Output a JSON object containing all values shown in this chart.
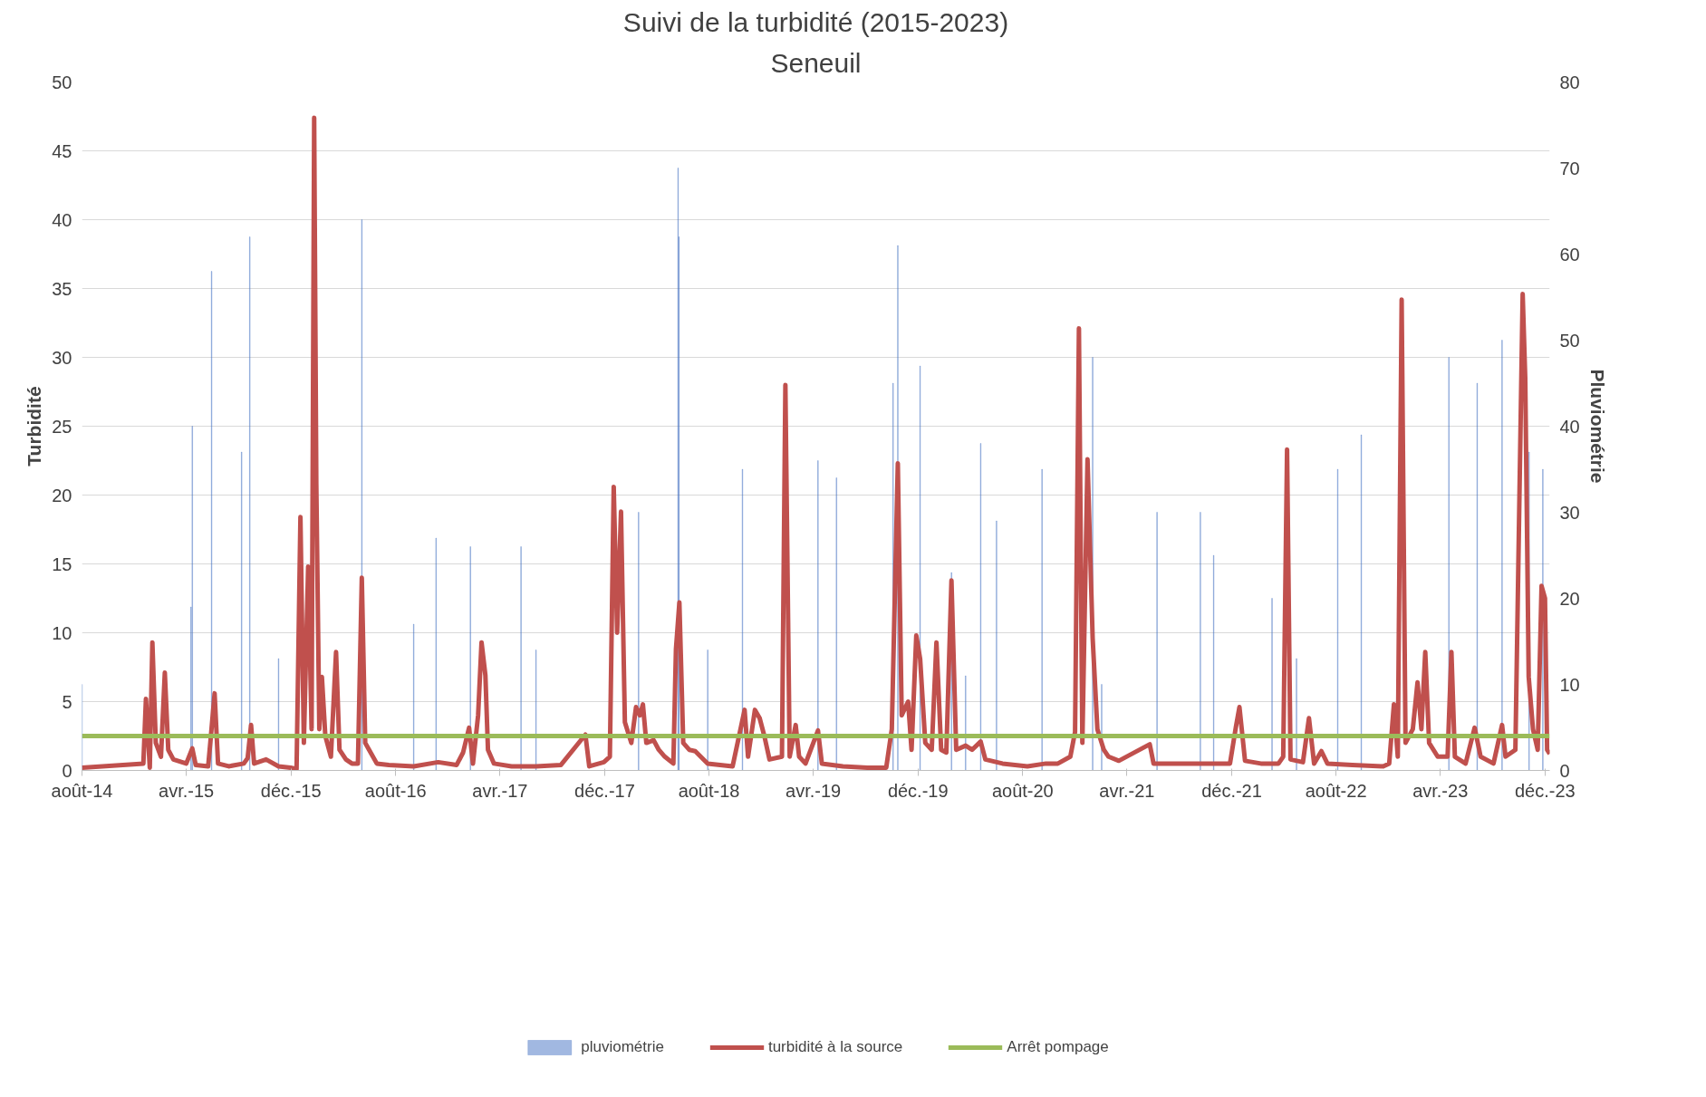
{
  "chart_data": {
    "type": "line",
    "title": "Suivi de la turbidité (2015-2023)",
    "subtitle": "Seneuil",
    "ylabel": "Turbidité",
    "y2label": "Pluviométrie",
    "xlim": [
      "2014-08-01",
      "2023-12-12"
    ],
    "xticks": [
      {
        "value": "2014-08",
        "label": "août-14"
      },
      {
        "value": "2015-04",
        "label": "avr.-15"
      },
      {
        "value": "2015-12",
        "label": "déc.-15"
      },
      {
        "value": "2016-08",
        "label": "août-16"
      },
      {
        "value": "2017-04",
        "label": "avr.-17"
      },
      {
        "value": "2017-12",
        "label": "déc.-17"
      },
      {
        "value": "2018-08",
        "label": "août-18"
      },
      {
        "value": "2019-04",
        "label": "avr.-19"
      },
      {
        "value": "2019-12",
        "label": "déc.-19"
      },
      {
        "value": "2020-08",
        "label": "août-20"
      },
      {
        "value": "2021-04",
        "label": "avr.-21"
      },
      {
        "value": "2021-12",
        "label": "déc.-21"
      },
      {
        "value": "2022-08",
        "label": "août-22"
      },
      {
        "value": "2023-04",
        "label": "avr.-23"
      },
      {
        "value": "2023-12",
        "label": "déc.-23"
      }
    ],
    "ylim": [
      0,
      50
    ],
    "yticks": [
      0,
      5,
      10,
      15,
      20,
      25,
      30,
      35,
      40,
      45,
      50
    ],
    "y2lim": [
      0,
      80
    ],
    "y2ticks": [
      0,
      10,
      20,
      30,
      40,
      50,
      60,
      70,
      80
    ],
    "grid": "y",
    "legend": "bottom",
    "series": [
      {
        "name": "pluviométrie",
        "type": "bar",
        "axis": "y2",
        "color": "#4472c4",
        "x": [
          "2014-08-01",
          "2015-04-12",
          "2015-04-15",
          "2015-05-30",
          "2015-08-08",
          "2015-08-27",
          "2015-11-02",
          "2016-05-14",
          "2016-09-12",
          "2016-11-03",
          "2017-01-22",
          "2017-05-20",
          "2017-06-24",
          "2017-12-13",
          "2018-02-18",
          "2018-05-21",
          "2018-05-23",
          "2018-07-29",
          "2018-10-18",
          "2019-01-18",
          "2019-04-12",
          "2019-05-25",
          "2019-10-04",
          "2019-10-15",
          "2019-12-06",
          "2020-02-17",
          "2020-03-21",
          "2020-04-25",
          "2020-06-01",
          "2020-09-15",
          "2021-01-11",
          "2021-02-01",
          "2021-06-10",
          "2021-09-19",
          "2021-10-20",
          "2022-03-05",
          "2022-05-01",
          "2022-08-05",
          "2022-09-29",
          "2023-04-21",
          "2023-06-26",
          "2023-08-23",
          "2023-10-25",
          "2023-11-26"
        ],
        "values": [
          10,
          19,
          40,
          58,
          37,
          62,
          13,
          64,
          17,
          27,
          26,
          26,
          14,
          null,
          30,
          70,
          62,
          14,
          35,
          null,
          36,
          34,
          45,
          61,
          47,
          23,
          11,
          38,
          29,
          35,
          48,
          10,
          30,
          30,
          25,
          20,
          13,
          35,
          39,
          48,
          45,
          50,
          37,
          35
        ]
      },
      {
        "name": "turbidité à la source",
        "axis": "y",
        "color": "#c0504d",
        "x": [
          "2014-08-01",
          "2014-12-22",
          "2014-12-28",
          "2015-01-06",
          "2015-01-12",
          "2015-01-20",
          "2015-02-01",
          "2015-02-10",
          "2015-02-18",
          "2015-03-02",
          "2015-04-01",
          "2015-04-15",
          "2015-04-23",
          "2015-05-22",
          "2015-05-27",
          "2015-06-06",
          "2015-06-14",
          "2015-07-09",
          "2015-08-13",
          "2015-08-22",
          "2015-08-30",
          "2015-09-06",
          "2015-10-04",
          "2015-11-02",
          "2015-11-30",
          "2015-12-14",
          "2015-12-23",
          "2015-12-31",
          "2016-01-10",
          "2016-01-18",
          "2016-01-24",
          "2016-01-29",
          "2016-02-05",
          "2016-02-11",
          "2016-02-19",
          "2016-03-03",
          "2016-03-15",
          "2016-03-23",
          "2016-04-07",
          "2016-04-21",
          "2016-05-05",
          "2016-05-14",
          "2016-05-22",
          "2016-05-31",
          "2016-06-18",
          "2016-07-16",
          "2016-09-12",
          "2016-11-08",
          "2016-12-21",
          "2017-01-05",
          "2017-01-19",
          "2017-01-28",
          "2017-02-09",
          "2017-02-17",
          "2017-02-26",
          "2017-03-04",
          "2017-03-18",
          "2017-04-28",
          "2017-06-24",
          "2017-08-21",
          "2017-10-17",
          "2017-10-26",
          "2017-11-29",
          "2017-12-13",
          "2017-12-22",
          "2017-12-30",
          "2018-01-08",
          "2018-01-17",
          "2018-02-01",
          "2018-02-12",
          "2018-02-21",
          "2018-02-28",
          "2018-03-08",
          "2018-03-25",
          "2018-04-06",
          "2018-04-20",
          "2018-05-10",
          "2018-05-16",
          "2018-05-24",
          "2018-06-02",
          "2018-06-16",
          "2018-06-30",
          "2018-07-29",
          "2018-09-25",
          "2018-10-23",
          "2018-10-31",
          "2018-11-16",
          "2018-11-27",
          "2018-12-08",
          "2018-12-20",
          "2019-01-18",
          "2019-01-26",
          "2019-02-05",
          "2019-02-19",
          "2019-02-27",
          "2019-03-14",
          "2019-04-12",
          "2019-04-21",
          "2019-06-09",
          "2019-08-05",
          "2019-09-18",
          "2019-10-01",
          "2019-10-15",
          "2019-10-24",
          "2019-11-08",
          "2019-11-16",
          "2019-11-27",
          "2019-12-06",
          "2019-12-18",
          "2020-01-02",
          "2020-01-13",
          "2020-01-24",
          "2020-02-05",
          "2020-02-17",
          "2020-02-28",
          "2020-03-21",
          "2020-04-05",
          "2020-04-25",
          "2020-05-06",
          "2020-06-15",
          "2020-08-12",
          "2020-09-24",
          "2020-10-22",
          "2020-11-20",
          "2020-12-01",
          "2020-12-10",
          "2020-12-18",
          "2020-12-30",
          "2021-01-11",
          "2021-01-22",
          "2021-02-06",
          "2021-02-17",
          "2021-03-13",
          "2021-05-24",
          "2021-06-02",
          "2021-07-20",
          "2021-09-16",
          "2021-11-27",
          "2021-12-11",
          "2021-12-19",
          "2022-01-01",
          "2022-02-07",
          "2022-03-20",
          "2022-03-31",
          "2022-04-09",
          "2022-04-17",
          "2022-05-16",
          "2022-05-30",
          "2022-06-11",
          "2022-06-28",
          "2022-07-12",
          "2022-09-08",
          "2022-11-19",
          "2022-12-03",
          "2022-12-14",
          "2022-12-23",
          "2023-01-01",
          "2023-01-10",
          "2023-01-27",
          "2023-02-07",
          "2023-02-16",
          "2023-02-25",
          "2023-03-06",
          "2023-03-26",
          "2023-04-18",
          "2023-04-27",
          "2023-05-05",
          "2023-05-30",
          "2023-06-20",
          "2023-07-04",
          "2023-08-03",
          "2023-08-23",
          "2023-08-31",
          "2023-09-23",
          "2023-10-10",
          "2023-10-16",
          "2023-10-24",
          "2023-11-03",
          "2023-11-14",
          "2023-11-23",
          "2023-12-01",
          "2023-12-06",
          "2023-12-12"
        ],
        "values": [
          0.2,
          0.5,
          5.2,
          0.2,
          9.3,
          2,
          1,
          7.1,
          1.5,
          0.8,
          0.5,
          1.6,
          0.4,
          0.3,
          2,
          5.6,
          0.5,
          0.3,
          0.5,
          0.9,
          3.3,
          0.5,
          0.8,
          0.3,
          0.2,
          0.1,
          18.4,
          2,
          14.8,
          3,
          47.4,
          20.8,
          3,
          6.8,
          2.5,
          1,
          8.6,
          1.5,
          0.8,
          0.5,
          0.5,
          14,
          2,
          1.5,
          0.5,
          0.4,
          0.3,
          0.6,
          0.4,
          1.3,
          3.1,
          0.5,
          4,
          9.3,
          6.9,
          1.5,
          0.5,
          0.3,
          0.3,
          0.4,
          2.6,
          0.3,
          0.6,
          1,
          20.6,
          10,
          18.8,
          3.5,
          2,
          4.6,
          4,
          4.8,
          2,
          2.2,
          1.5,
          1,
          0.5,
          8.8,
          12.2,
          2,
          1.5,
          1.4,
          0.5,
          0.3,
          4.4,
          1,
          4.4,
          3.8,
          2.5,
          0.8,
          1,
          28,
          1,
          3.3,
          1,
          0.5,
          2.9,
          0.5,
          0.3,
          0.2,
          0.2,
          3,
          22.3,
          4,
          5,
          1.5,
          9.8,
          8.1,
          2,
          1.5,
          9.3,
          1.5,
          1.3,
          13.8,
          1.5,
          1.8,
          1.5,
          2.1,
          0.8,
          0.5,
          0.3,
          0.5,
          0.5,
          1,
          2.8,
          32.1,
          2,
          22.6,
          9.6,
          3,
          1.5,
          1,
          0.7,
          1.9,
          0.5,
          0.5,
          0.5,
          0.5,
          3.2,
          4.6,
          0.7,
          0.5,
          0.5,
          1,
          23.3,
          0.8,
          0.6,
          3.8,
          0.5,
          1.4,
          0.5,
          0.4,
          0.3,
          0.5,
          4.8,
          1,
          34.2,
          2,
          3,
          6.4,
          3,
          8.6,
          2,
          1,
          1,
          8.6,
          1,
          0.5,
          3.1,
          1,
          0.5,
          3.3,
          1,
          1.5,
          34.6,
          28.5,
          6.8,
          3,
          1.5,
          13.4,
          12.5,
          1.5,
          1.2
        ]
      },
      {
        "name": "Arrêt pompage",
        "axis": "y",
        "color": "#9bbb59",
        "x": [
          "2014-08-01",
          "2023-12-12"
        ],
        "values": [
          2.5,
          2.5
        ]
      }
    ]
  }
}
